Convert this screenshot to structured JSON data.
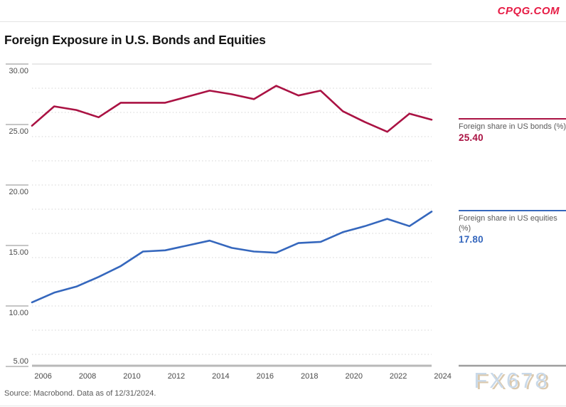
{
  "brand": "CPQG.COM",
  "title": "Foreign Exposure in U.S. Bonds and Equities",
  "chart_data": {
    "type": "line",
    "title": "Foreign Exposure in U.S. Bonds and Equities",
    "x": [
      2006,
      2007,
      2008,
      2009,
      2010,
      2011,
      2012,
      2013,
      2014,
      2015,
      2016,
      2017,
      2018,
      2019,
      2020,
      2021,
      2022,
      2023,
      2024
    ],
    "series": [
      {
        "name": "Foreign share in US bonds (%)",
        "color": "#aa1243",
        "value_label": "25.40",
        "last_value": 25.4,
        "values": [
          24.9,
          26.5,
          26.2,
          25.6,
          26.8,
          26.8,
          26.8,
          27.3,
          27.8,
          27.5,
          27.1,
          28.2,
          27.4,
          27.8,
          26.1,
          25.2,
          24.4,
          25.9,
          25.4
        ]
      },
      {
        "name": "Foreign share in US equities (%)",
        "color": "#3567bd",
        "value_label": "17.80",
        "last_value": 17.8,
        "values": [
          10.3,
          11.1,
          11.6,
          12.4,
          13.3,
          14.5,
          14.6,
          15.0,
          15.4,
          14.8,
          14.5,
          14.4,
          15.2,
          15.3,
          16.1,
          16.6,
          17.2,
          16.6,
          17.8
        ]
      }
    ],
    "ylim": [
      5,
      30
    ],
    "ytick_step": 5,
    "ytick_labels": [
      "30.00",
      "25.00",
      "20.00",
      "15.00",
      "10.00",
      "5.00"
    ],
    "grid_step": 2,
    "grid_style": "dotted horizontal",
    "xtick_labels": [
      "2006",
      "2008",
      "2010",
      "2012",
      "2014",
      "2016",
      "2018",
      "2020",
      "2022",
      "2024"
    ],
    "legend_position": "right"
  },
  "footer": {
    "source": "Source: Macrobond. Data as of 12/31/2024.",
    "watermark": "FX678"
  }
}
